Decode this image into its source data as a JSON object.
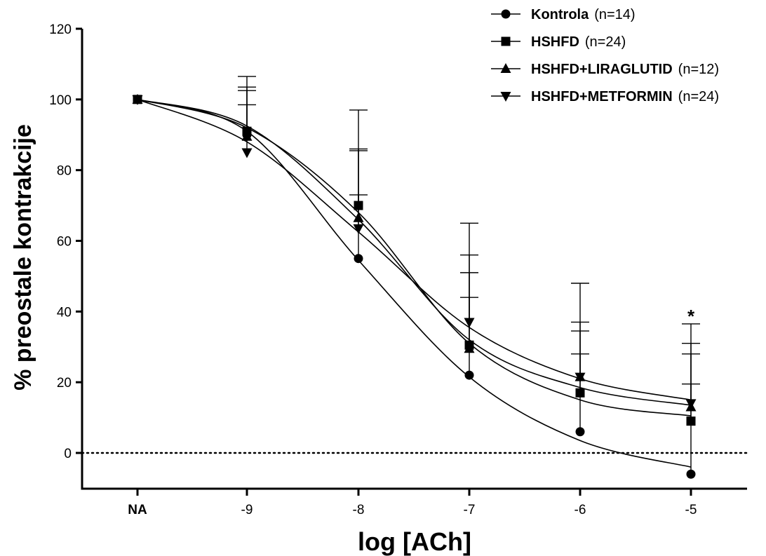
{
  "chart_data": {
    "type": "line",
    "xlabel": "log [ACh]",
    "ylabel": "% preostale kontrakcije",
    "categories": [
      "NA",
      "-9",
      "-8",
      "-7",
      "-6",
      "-5"
    ],
    "yticks": [
      "0",
      "20",
      "40",
      "60",
      "80",
      "100",
      "120"
    ],
    "ylim": [
      -10,
      120
    ],
    "zero_reference_line": "dotted",
    "legend_position": "top-right",
    "annotation": {
      "text": "*",
      "category": "-5"
    },
    "series": [
      {
        "name": "Kontrola",
        "n_label": "(n=14)",
        "marker": "circle",
        "values": [
          100,
          90,
          55,
          22,
          6,
          -6
        ],
        "error_upper": [
          0,
          103.5,
          73,
          44,
          28,
          19.5
        ],
        "fit_curve": [
          100,
          91,
          54.5,
          21.5,
          3.5,
          -4
        ]
      },
      {
        "name": "HSHFD",
        "n_label": "(n=24)",
        "marker": "square",
        "values": [
          100,
          91,
          70,
          30.5,
          17,
          9
        ],
        "error_upper": [
          0,
          106.5,
          97,
          65,
          48,
          36.5
        ],
        "fit_curve": [
          100,
          92,
          68,
          31,
          15,
          10.5
        ]
      },
      {
        "name": "HSHFD+LIRAGLUTID",
        "n_label": "(n=12)",
        "marker": "triangle-up",
        "values": [
          100,
          89.5,
          66.5,
          29.5,
          21.5,
          13
        ],
        "error_upper": [
          0,
          98.5,
          86,
          51,
          34.5,
          28
        ],
        "fit_curve": [
          100,
          92.5,
          66,
          32,
          18.5,
          13.5
        ]
      },
      {
        "name": "HSHFD+METFORMIN",
        "n_label": "(n=24)",
        "marker": "triangle-down",
        "values": [
          100,
          85,
          63.5,
          37,
          21.5,
          14
        ],
        "error_upper": [
          0,
          102.5,
          85.5,
          56,
          37,
          31
        ],
        "fit_curve": [
          100,
          88,
          62.5,
          35.5,
          21,
          15
        ]
      }
    ]
  }
}
